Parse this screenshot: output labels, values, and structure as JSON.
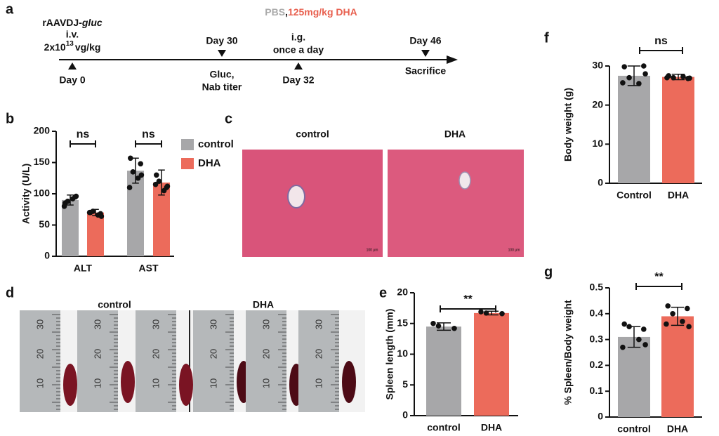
{
  "panel_labels": [
    "a",
    "b",
    "c",
    "d",
    "e",
    "f",
    "g"
  ],
  "timeline": {
    "vector": "rAAVDJ-",
    "vector_gene": "gluc",
    "route": "i.v.",
    "dose_base": "2x10",
    "dose_exp": "13",
    "dose_unit": "vg/kg",
    "day0": "Day 0",
    "day30": "Day 30",
    "day30_note1": "Gluc,",
    "day30_note2": "Nab titer",
    "treat_pbs": "PBS",
    "treat_sep": ",",
    "treat_dha": "125mg/kg DHA",
    "treat_route": "i.g.",
    "treat_freq": "once a day",
    "day32": "Day 32",
    "day46": "Day 46",
    "day46_note": "Sacrifice"
  },
  "histology": {
    "labels": [
      "control",
      "DHA"
    ],
    "scale_bar": "100 μm"
  },
  "spleen_photo": {
    "labels": [
      "control",
      "DHA"
    ],
    "ruler_labels": [
      "30",
      "20",
      "10"
    ]
  },
  "chart_data": [
    {
      "type": "bar",
      "y_label": "Activity (U/L)",
      "categories": [
        "ALT",
        "AST"
      ],
      "series": [
        {
          "name": "control",
          "color": "#a7a7a9",
          "values": [
            90,
            137
          ],
          "errors": [
            8,
            20
          ],
          "points": [
            [
              85,
              95,
              88,
              92,
              80,
              96
            ],
            [
              157,
              148,
              135,
              125,
              110,
              130
            ]
          ]
        },
        {
          "name": "DHA",
          "color": "#ec6b5b",
          "values": [
            70,
            118
          ],
          "errors": [
            5,
            20
          ],
          "points": [
            [
              70,
              68,
              72,
              66,
              70,
              64
            ],
            [
              130,
              110,
              120,
              105,
              115,
              112
            ]
          ]
        }
      ],
      "ylim": [
        0,
        200
      ],
      "yticks": [
        0,
        50,
        100,
        150,
        200
      ],
      "annotations": [
        "ns",
        "ns"
      ],
      "legend": "right"
    },
    {
      "type": "bar",
      "y_label": "Spleen length (mm)",
      "categories": [
        "control",
        "DHA"
      ],
      "colors": [
        "#a7a7a9",
        "#ec6b5b"
      ],
      "values": [
        14.5,
        16.7
      ],
      "errors": [
        0.6,
        0.3
      ],
      "points": [
        [
          15,
          14.2,
          14.6
        ],
        [
          16.9,
          16.6,
          16.7
        ]
      ],
      "ylim": [
        0,
        20
      ],
      "yticks": [
        0,
        5,
        10,
        15,
        20
      ],
      "annotations": [
        "**"
      ]
    },
    {
      "type": "bar",
      "y_label": "Body weight (g)",
      "categories": [
        "Control",
        "DHA"
      ],
      "colors": [
        "#a7a7a9",
        "#ec6b5b"
      ],
      "values": [
        27.5,
        27.2
      ],
      "errors": [
        2.5,
        0.7
      ],
      "points": [
        [
          29.8,
          30,
          27,
          25.5,
          25.7,
          28
        ],
        [
          27.5,
          26.8,
          27,
          27.3,
          27,
          26.9
        ]
      ],
      "ylim": [
        0,
        30
      ],
      "yticks": [
        0,
        10,
        20,
        30
      ],
      "annotations": [
        "ns"
      ]
    },
    {
      "type": "bar",
      "y_label": "% Spleen/Body weight",
      "categories": [
        "control",
        "DHA"
      ],
      "colors": [
        "#a7a7a9",
        "#ec6b5b"
      ],
      "values": [
        0.31,
        0.39
      ],
      "errors": [
        0.04,
        0.035
      ],
      "points": [
        [
          0.36,
          0.34,
          0.35,
          0.3,
          0.27,
          0.28
        ],
        [
          0.43,
          0.42,
          0.4,
          0.37,
          0.36,
          0.35
        ]
      ],
      "ylim": [
        0,
        0.5
      ],
      "yticks": [
        0,
        0.1,
        0.2,
        0.3,
        0.4,
        0.5
      ],
      "annotations": [
        "**"
      ]
    }
  ]
}
